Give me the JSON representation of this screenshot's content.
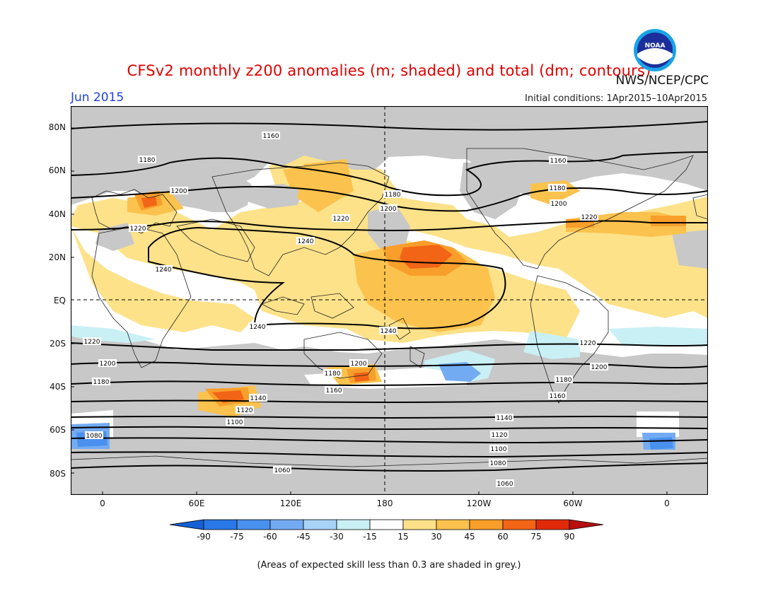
{
  "header": {
    "title": "CFSv2 monthly z200 anomalies (m; shaded) and total (dm; contours)",
    "agency": "NWS/NCEP/CPC",
    "logo_text": "NOAA",
    "month": "Jun 2015",
    "initial_conditions": "Initial conditions: 1Apr2015–10Apr2015"
  },
  "axes": {
    "lat_labels": [
      "80N",
      "60N",
      "40N",
      "20N",
      "EQ",
      "20S",
      "40S",
      "60S",
      "80S"
    ],
    "lon_labels": [
      "0",
      "60E",
      "120E",
      "180",
      "120W",
      "60W",
      "0"
    ]
  },
  "colorbar": {
    "labels": [
      "-90",
      "-75",
      "-60",
      "-45",
      "-30",
      "-15",
      "15",
      "30",
      "45",
      "60",
      "75",
      "90"
    ],
    "colors": [
      "#1560d6",
      "#2a78e8",
      "#4a90ee",
      "#73abf2",
      "#a8d3f7",
      "#c9f0f5",
      "#ffffff",
      "#fde28a",
      "#fbc24d",
      "#f89e2a",
      "#f26416",
      "#e02a0a",
      "#b80e0e"
    ]
  },
  "contours": {
    "values": [
      "1160",
      "1180",
      "1200",
      "1220",
      "1240",
      "1240",
      "1240",
      "1240",
      "1220",
      "1200",
      "1180",
      "1160",
      "1140",
      "1120",
      "1100",
      "1080",
      "1060",
      "1180",
      "1200",
      "1220",
      "1200",
      "1180",
      "1160",
      "1220",
      "1200",
      "1180",
      "1160",
      "1140",
      "1120",
      "1100",
      "1080",
      "1060",
      "1180",
      "1200",
      "1220"
    ]
  },
  "footnote": "(Areas of expected skill less than 0.3 are shaded in grey.)",
  "colors": {
    "grey": "#c8c8c8",
    "title_red": "#e00000",
    "month_blue": "#1f3fe0"
  }
}
